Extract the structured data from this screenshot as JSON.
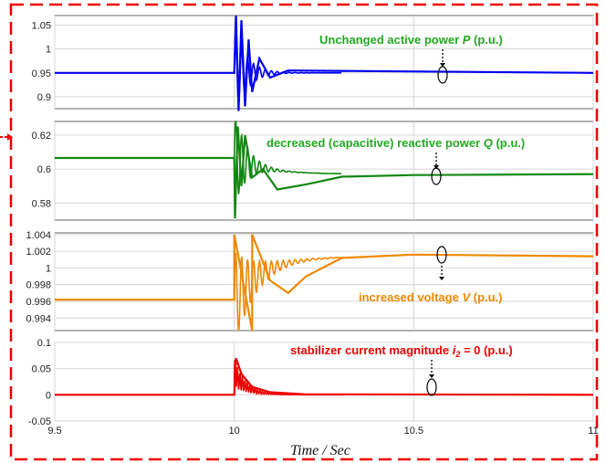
{
  "chart_data": [
    {
      "type": "line",
      "panel": "P",
      "series": [
        {
          "color": "#0000ee",
          "x": [
            9.5,
            10.0,
            10.005,
            10.012,
            10.02,
            10.03,
            10.04,
            10.05,
            10.07,
            10.1,
            10.15,
            11.0
          ],
          "y": [
            0.95,
            0.95,
            1.07,
            0.87,
            1.06,
            0.88,
            1.02,
            0.91,
            0.98,
            0.94,
            0.955,
            0.95
          ]
        }
      ],
      "ylim": [
        0.875,
        1.07
      ],
      "yticks": [
        "0.9",
        "0.95",
        "1",
        "1.05"
      ],
      "annotation": {
        "text": "Unchanged active power ",
        "var": "P",
        "unit": " (p.u.)",
        "color": "#22aa22"
      },
      "grid": true
    },
    {
      "type": "line",
      "panel": "Q",
      "series": [
        {
          "color": "#118811",
          "x": [
            9.5,
            10.0,
            10.002,
            10.01,
            10.02,
            10.03,
            10.05,
            10.08,
            10.12,
            10.2,
            10.3,
            10.5,
            11.0
          ],
          "y": [
            0.6065,
            0.6065,
            0.571,
            0.625,
            0.59,
            0.62,
            0.595,
            0.6,
            0.588,
            0.591,
            0.5955,
            0.5965,
            0.597
          ]
        }
      ],
      "ylim": [
        0.57,
        0.628
      ],
      "yticks": [
        "0.58",
        "0.6",
        "0.62"
      ],
      "annotation": {
        "text": "decreased (capacitive) reactive power ",
        "var": "Q",
        "unit": " (p.u.)",
        "color": "#22aa22"
      },
      "grid": true
    },
    {
      "type": "line",
      "panel": "V",
      "series": [
        {
          "color": "#ee8800",
          "x": [
            9.5,
            10.0,
            10.0,
            10.05,
            10.05,
            10.1,
            10.15,
            10.2,
            10.3,
            10.5,
            11.0
          ],
          "y": [
            0.9962,
            0.9962,
            1.004,
            0.9925,
            1.004,
            0.9985,
            0.997,
            0.999,
            1.0012,
            1.0016,
            1.0014
          ]
        }
      ],
      "ylim": [
        0.9925,
        1.0042
      ],
      "yticks": [
        "0.994",
        "0.996",
        "0.998",
        "1",
        "1.002",
        "1.004"
      ],
      "annotation": {
        "text": "increased voltage  ",
        "var": "V",
        "unit": " (p.u.)",
        "color": "#ee8800"
      },
      "grid": true
    },
    {
      "type": "line",
      "panel": "i2",
      "series": [
        {
          "color": "#ee0000",
          "x": [
            9.5,
            10.0,
            10.005,
            10.02,
            10.05,
            10.1,
            10.2,
            11.0
          ],
          "y": [
            0,
            0,
            0.07,
            0.04,
            0.015,
            0.005,
            0.001,
            0
          ]
        }
      ],
      "ylim": [
        -0.05,
        0.1
      ],
      "yticks": [
        "-0.05",
        "0",
        "0.05",
        "0.1"
      ],
      "annotation": {
        "text": "stabilizer current magnitude ",
        "var": "i",
        "sub": "2",
        "unit": " = 0 (p.u.)",
        "color": "#ee0000"
      },
      "grid": true
    }
  ],
  "xaxis": {
    "label": "Time / Sec",
    "range": [
      9.5,
      11.0
    ],
    "ticks": [
      "9.5",
      "10",
      "10.5",
      "11"
    ]
  }
}
